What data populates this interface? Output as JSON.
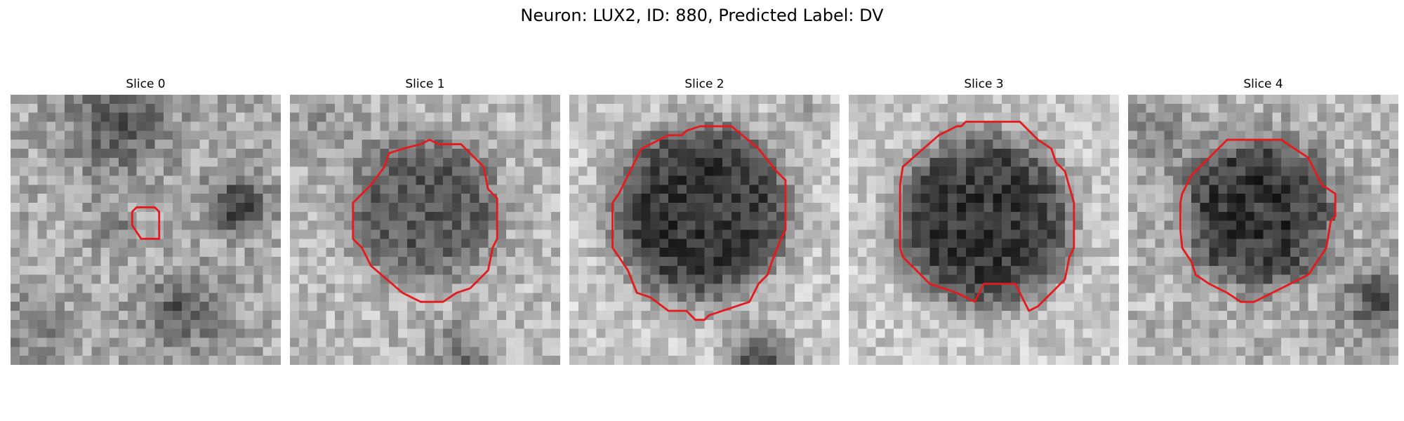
{
  "figure": {
    "title": "Neuron: LUX2, ID: 880, Predicted Label: DV"
  },
  "colors": {
    "contour": "#e41a1c"
  },
  "panels": [
    {
      "title": "Slice 0",
      "contour": "small-roi-contour"
    },
    {
      "title": "Slice 1",
      "contour": "neuron-roi-contour"
    },
    {
      "title": "Slice 2",
      "contour": "neuron-roi-contour"
    },
    {
      "title": "Slice 3",
      "contour": "neuron-roi-contour"
    },
    {
      "title": "Slice 4",
      "contour": "neuron-roi-contour"
    }
  ]
}
